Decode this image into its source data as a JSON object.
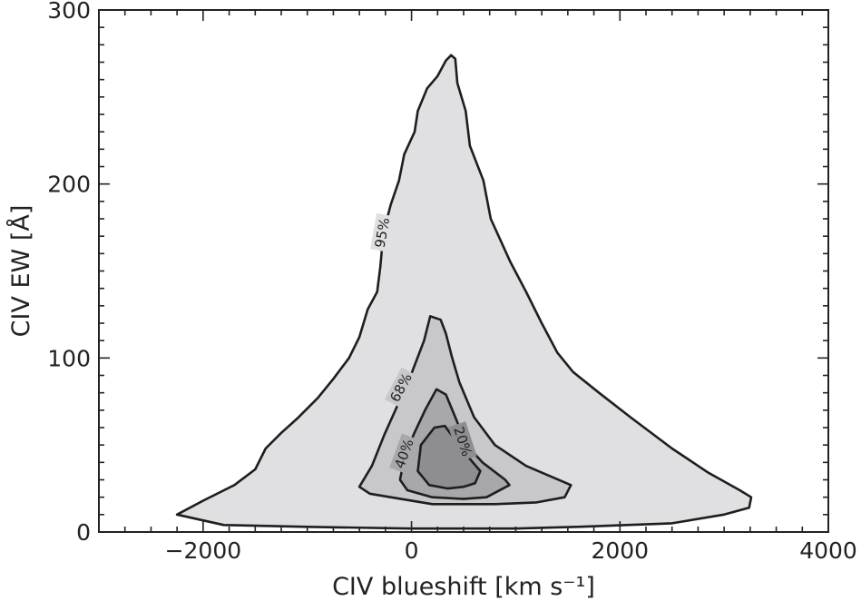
{
  "chart_data": {
    "type": "contour",
    "xlabel": "CIV blueshift [km s⁻¹]",
    "ylabel": "CIV EW [Å]",
    "xlim": [
      -3000,
      4000
    ],
    "ylim": [
      0,
      300
    ],
    "x_ticks": [
      -2000,
      0,
      2000,
      4000
    ],
    "x_tick_labels": [
      "−2000",
      "0",
      "2000",
      "4000"
    ],
    "y_ticks": [
      0,
      100,
      200,
      300
    ],
    "y_tick_labels": [
      "0",
      "100",
      "200",
      "300"
    ],
    "x_minor_step": 250,
    "y_minor_step": 10,
    "grid": false,
    "levels": [
      {
        "label": "95%",
        "fill": "#e0e0e2",
        "label_pos": [
          -280,
          172
        ],
        "label_rotation": -80,
        "points": [
          [
            -2250,
            10
          ],
          [
            -2000,
            18
          ],
          [
            -1700,
            27
          ],
          [
            -1500,
            36
          ],
          [
            -1400,
            48
          ],
          [
            -1250,
            57
          ],
          [
            -1100,
            65
          ],
          [
            -900,
            77
          ],
          [
            -750,
            88
          ],
          [
            -600,
            100
          ],
          [
            -500,
            112
          ],
          [
            -420,
            128
          ],
          [
            -330,
            138
          ],
          [
            -300,
            152
          ],
          [
            -270,
            172
          ],
          [
            -200,
            188
          ],
          [
            -120,
            202
          ],
          [
            -70,
            217
          ],
          [
            30,
            230
          ],
          [
            60,
            242
          ],
          [
            150,
            255
          ],
          [
            250,
            262
          ],
          [
            330,
            271
          ],
          [
            380,
            274
          ],
          [
            420,
            272
          ],
          [
            440,
            258
          ],
          [
            520,
            242
          ],
          [
            560,
            222
          ],
          [
            690,
            202
          ],
          [
            760,
            180
          ],
          [
            950,
            155
          ],
          [
            1100,
            138
          ],
          [
            1250,
            120
          ],
          [
            1400,
            103
          ],
          [
            1550,
            92
          ],
          [
            1800,
            80
          ],
          [
            2100,
            66
          ],
          [
            2500,
            48
          ],
          [
            2850,
            34
          ],
          [
            3150,
            24
          ],
          [
            3260,
            20
          ],
          [
            3240,
            14
          ],
          [
            3000,
            10
          ],
          [
            2500,
            5
          ],
          [
            1600,
            3
          ],
          [
            1000,
            2
          ],
          [
            0,
            2
          ],
          [
            -1000,
            3
          ],
          [
            -1800,
            4
          ],
          [
            -2250,
            10
          ]
        ]
      },
      {
        "label": "68%",
        "fill": "#c8c8ca",
        "label_pos": [
          -100,
          83
        ],
        "label_rotation": -62,
        "points": [
          [
            -500,
            26
          ],
          [
            -380,
            38
          ],
          [
            -260,
            56
          ],
          [
            -140,
            72
          ],
          [
            -20,
            88
          ],
          [
            120,
            110
          ],
          [
            180,
            124
          ],
          [
            280,
            122
          ],
          [
            330,
            114
          ],
          [
            390,
            100
          ],
          [
            460,
            86
          ],
          [
            600,
            66
          ],
          [
            800,
            50
          ],
          [
            1100,
            38
          ],
          [
            1530,
            27
          ],
          [
            1470,
            20
          ],
          [
            1200,
            17
          ],
          [
            800,
            16
          ],
          [
            200,
            16
          ],
          [
            -200,
            20
          ],
          [
            -400,
            22
          ],
          [
            -500,
            26
          ]
        ]
      },
      {
        "label": "40%",
        "fill": "#a8a8aa",
        "label_pos": [
          -70,
          45
        ],
        "label_rotation": -70,
        "points": [
          [
            -110,
            30
          ],
          [
            -70,
            42
          ],
          [
            20,
            56
          ],
          [
            130,
            70
          ],
          [
            240,
            82
          ],
          [
            330,
            79
          ],
          [
            420,
            66
          ],
          [
            530,
            50
          ],
          [
            680,
            40
          ],
          [
            900,
            30
          ],
          [
            940,
            27
          ],
          [
            720,
            20
          ],
          [
            500,
            19
          ],
          [
            200,
            20
          ],
          [
            -40,
            24
          ],
          [
            -110,
            30
          ]
        ]
      },
      {
        "label": "20%",
        "fill": "#8e8e90",
        "label_pos": [
          490,
          52
        ],
        "label_rotation": 72,
        "points": [
          [
            60,
            35
          ],
          [
            90,
            50
          ],
          [
            220,
            60
          ],
          [
            320,
            61
          ],
          [
            430,
            52
          ],
          [
            560,
            42
          ],
          [
            660,
            35
          ],
          [
            610,
            28
          ],
          [
            500,
            26
          ],
          [
            350,
            25
          ],
          [
            170,
            27
          ],
          [
            60,
            35
          ]
        ]
      }
    ]
  }
}
